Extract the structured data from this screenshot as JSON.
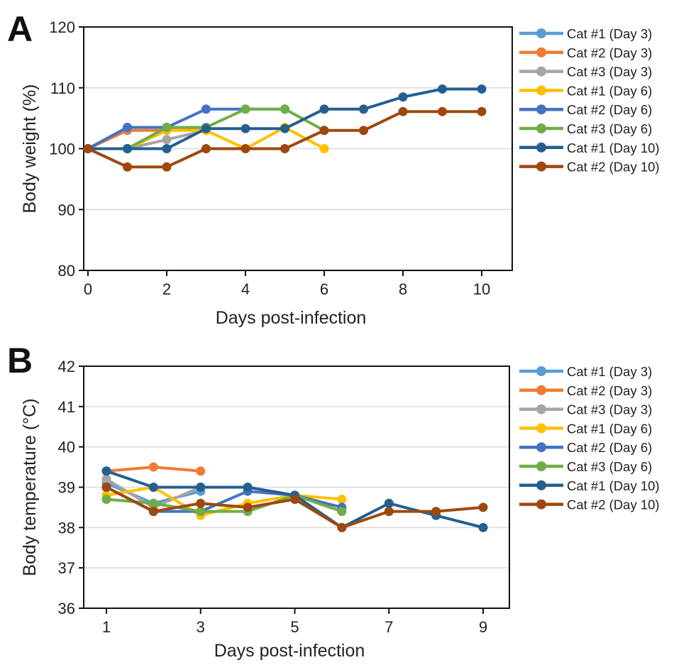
{
  "colors": {
    "cat1_day3": "#5b9bd5",
    "cat2_day3": "#ed7d31",
    "cat3_day3": "#a5a5a5",
    "cat1_day6": "#ffc000",
    "cat2_day6": "#4472c4",
    "cat3_day6": "#70ad47",
    "cat1_day10": "#255e91",
    "cat2_day10": "#9e480e"
  },
  "chart_data": [
    {
      "panel": "A",
      "type": "line",
      "title": "",
      "xlabel": "Days post-infection",
      "ylabel": "Body weight (%)",
      "xlim": [
        0,
        10
      ],
      "ylim": [
        80,
        120
      ],
      "xticks": [
        0,
        2,
        4,
        6,
        8,
        10
      ],
      "yticks": [
        80,
        90,
        100,
        110,
        120
      ],
      "grid": true,
      "legend_position": "right",
      "series": [
        {
          "name": "Cat #1 (Day 3)",
          "color_key": "cat1_day3",
          "x": [
            0,
            1,
            2,
            3
          ],
          "y": [
            100,
            103.5,
            103.5,
            103.5
          ]
        },
        {
          "name": "Cat #2 (Day 3)",
          "color_key": "cat2_day3",
          "x": [
            0,
            1,
            2,
            3
          ],
          "y": [
            100,
            103,
            103,
            103.5
          ]
        },
        {
          "name": "Cat #3 (Day 3)",
          "color_key": "cat3_day3",
          "x": [
            0,
            1,
            2,
            3
          ],
          "y": [
            100,
            100,
            101.5,
            103
          ]
        },
        {
          "name": "Cat #1 (Day 6)",
          "color_key": "cat1_day6",
          "x": [
            0,
            1,
            2,
            3,
            4,
            5,
            6
          ],
          "y": [
            100,
            100,
            103,
            103,
            100,
            103.5,
            100
          ]
        },
        {
          "name": "Cat #2 (Day 6)",
          "color_key": "cat2_day6",
          "x": [
            0,
            1,
            2,
            3,
            4,
            5
          ],
          "y": [
            100,
            103.5,
            103.5,
            106.5,
            106.5,
            106.5
          ]
        },
        {
          "name": "Cat #3 (Day 6)",
          "color_key": "cat3_day6",
          "x": [
            0,
            1,
            2,
            3,
            4,
            5,
            6
          ],
          "y": [
            100,
            100,
            103.5,
            103.5,
            106.5,
            106.5,
            103
          ]
        },
        {
          "name": "Cat #1 (Day 10)",
          "color_key": "cat1_day10",
          "x": [
            0,
            1,
            2,
            3,
            4,
            5,
            6,
            7,
            8,
            9,
            10
          ],
          "y": [
            100,
            100,
            100,
            103.3,
            103.3,
            103.3,
            106.5,
            106.5,
            108.5,
            109.8,
            109.8
          ]
        },
        {
          "name": "Cat #2 (Day 10)",
          "color_key": "cat2_day10",
          "x": [
            0,
            1,
            2,
            3,
            4,
            5,
            6,
            7,
            8,
            9,
            10
          ],
          "y": [
            100,
            97,
            97,
            100,
            100,
            100,
            103,
            103,
            106.1,
            106.1,
            106.1
          ]
        }
      ]
    },
    {
      "panel": "B",
      "type": "line",
      "title": "",
      "xlabel": "Days post-infection",
      "ylabel": "Body temperature (°C)",
      "xlim": [
        0.5,
        9.5
      ],
      "ylim": [
        36,
        42
      ],
      "xticks": [
        1,
        3,
        5,
        7,
        9
      ],
      "yticks": [
        36,
        37,
        38,
        39,
        40,
        41,
        42
      ],
      "grid": true,
      "legend_position": "right",
      "series": [
        {
          "name": "Cat #1 (Day 3)",
          "color_key": "cat1_day3",
          "x": [
            1,
            2,
            3
          ],
          "y": [
            39.1,
            38.6,
            38.9
          ]
        },
        {
          "name": "Cat #2 (Day 3)",
          "color_key": "cat2_day3",
          "x": [
            1,
            2,
            3
          ],
          "y": [
            39.4,
            39.5,
            39.4
          ]
        },
        {
          "name": "Cat #3 (Day 3)",
          "color_key": "cat3_day3",
          "x": [
            1,
            2,
            3
          ],
          "y": [
            39.2,
            38.5,
            39.0
          ]
        },
        {
          "name": "Cat #1 (Day 6)",
          "color_key": "cat1_day6",
          "x": [
            1,
            2,
            3,
            4,
            5,
            6
          ],
          "y": [
            38.8,
            39.0,
            38.3,
            38.6,
            38.8,
            38.7
          ]
        },
        {
          "name": "Cat #2 (Day 6)",
          "color_key": "cat2_day6",
          "x": [
            1,
            2,
            3,
            4,
            5,
            6
          ],
          "y": [
            39.0,
            38.4,
            38.4,
            38.9,
            38.8,
            38.5
          ]
        },
        {
          "name": "Cat #3 (Day 6)",
          "color_key": "cat3_day6",
          "x": [
            1,
            2,
            3,
            4,
            5,
            6
          ],
          "y": [
            38.7,
            38.6,
            38.4,
            38.4,
            38.8,
            38.4
          ]
        },
        {
          "name": "Cat #1 (Day 10)",
          "color_key": "cat1_day10",
          "x": [
            1,
            2,
            3,
            4,
            5,
            6,
            7,
            8,
            9
          ],
          "y": [
            39.4,
            39.0,
            39.0,
            39.0,
            38.8,
            38.0,
            38.6,
            38.3,
            38.0
          ]
        },
        {
          "name": "Cat #2 (Day 10)",
          "color_key": "cat2_day10",
          "x": [
            1,
            2,
            3,
            4,
            5,
            6,
            7,
            8,
            9
          ],
          "y": [
            39.0,
            38.4,
            38.6,
            38.5,
            38.7,
            38.0,
            38.4,
            38.4,
            38.5
          ]
        }
      ]
    }
  ]
}
